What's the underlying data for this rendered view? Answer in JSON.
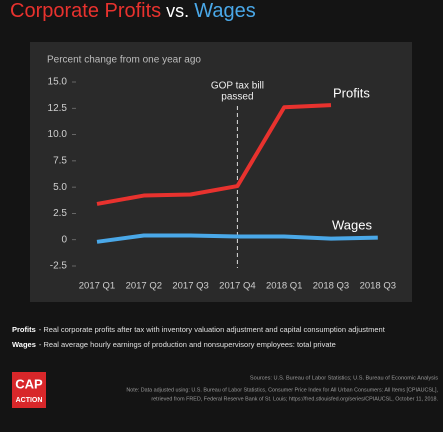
{
  "chart_data": {
    "type": "line",
    "title": [
      "Corporate Profits",
      "vs.",
      "Wages"
    ],
    "title_colors": [
      "#e8322e",
      "#ffffff",
      "#4aa8e8"
    ],
    "subtitle": "Percent change from one year ago",
    "categories": [
      "2017 Q1",
      "2017 Q2",
      "2017 Q3",
      "2017 Q4",
      "2018 Q1",
      "2018 Q3",
      "2018 Q3"
    ],
    "series": [
      {
        "name": "Profits",
        "color": "#e8322e",
        "values": [
          3.4,
          4.2,
          4.3,
          5.1,
          12.6,
          12.8,
          null
        ]
      },
      {
        "name": "Wages",
        "color": "#4aa8e8",
        "values": [
          -0.2,
          0.4,
          0.4,
          0.3,
          0.3,
          0.1,
          0.2
        ]
      }
    ],
    "ylim": [
      -2.5,
      15
    ],
    "yticks": [
      {
        "value": 15,
        "label": "15.0"
      },
      12.5,
      {
        "value": 10,
        "label": "10.0"
      },
      7.5,
      {
        "value": 5,
        "label": "5.0"
      },
      2.5,
      0,
      -2.5
    ],
    "annotation": {
      "category_index": 3,
      "lines": [
        "GOP tax bill",
        "passed"
      ]
    },
    "notes": [
      {
        "term": "Profits",
        "text": "- Real corporate profits after tax with inventory valuation adjustment and capital consumption adjustment"
      },
      {
        "term": "Wages",
        "text": "- Real average hourly earnings of production and nonsupervisory employees: total private"
      }
    ],
    "sources": "Sources: U.S. Bureau of Labor Statistics; U.S. Bureau of Economic Analysis",
    "data_note": [
      "Note: Data adjusted using: U.S. Bureau of Labor Statistics, Consumer Price Index for All Urban Consumers: All Items [CPIAUCSL],",
      "retrieved from FRED, Federal Reserve Bank of St. Louis; https://fred.stlouisfed.org/series/CPIAUCSL, October 11, 2018."
    ],
    "logo": [
      "CAP",
      "ACTION"
    ]
  }
}
